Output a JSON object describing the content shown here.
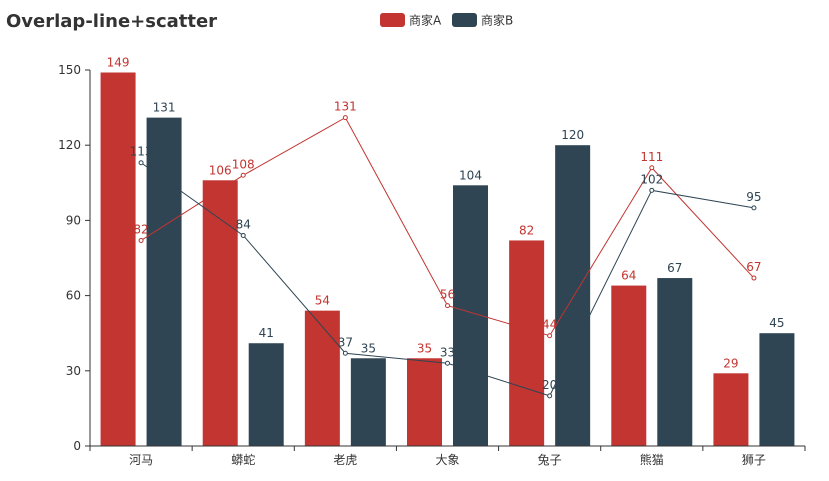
{
  "chart_data": {
    "type": "bar",
    "title": "Overlap-line+scatter",
    "categories": [
      "河马",
      "蟒蛇",
      "老虎",
      "大象",
      "兔子",
      "熊猫",
      "狮子"
    ],
    "ylim": [
      0,
      150
    ],
    "yticks": [
      0,
      30,
      60,
      90,
      120,
      150
    ],
    "legend_position": "top-center",
    "bar_series": [
      {
        "name": "商家A",
        "color": "#c23531",
        "values": [
          149,
          106,
          54,
          35,
          82,
          64,
          29
        ]
      },
      {
        "name": "商家B",
        "color": "#2f4554",
        "values": [
          131,
          41,
          35,
          104,
          120,
          67,
          45
        ]
      }
    ],
    "line_series": [
      {
        "name": "商家A",
        "color": "#c23531",
        "values": [
          82,
          108,
          131,
          56,
          44,
          111,
          67
        ]
      },
      {
        "name": "商家B",
        "color": "#2f4554",
        "values": [
          113,
          84,
          37,
          33,
          20,
          102,
          95
        ]
      }
    ]
  }
}
